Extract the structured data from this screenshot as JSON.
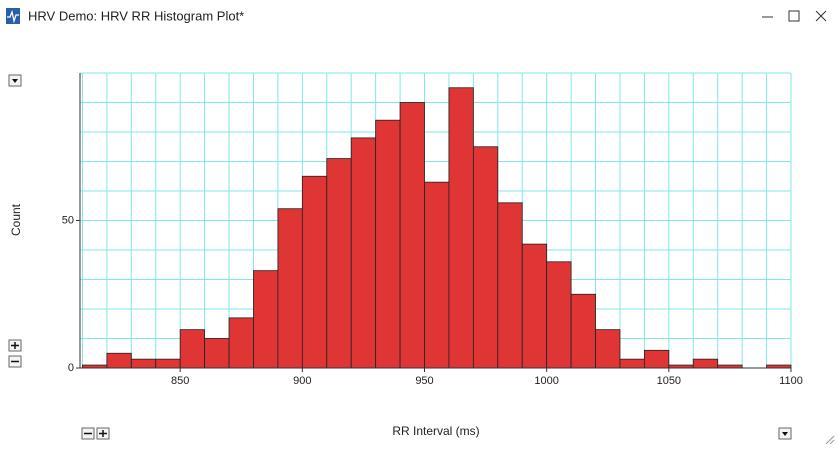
{
  "window": {
    "title": "HRV Demo: HRV RR Histogram Plot*"
  },
  "chart_data": {
    "type": "histogram",
    "xlabel": "RR Interval (ms)",
    "ylabel": "Count",
    "bins": [
      810,
      820,
      830,
      840,
      850,
      860,
      870,
      880,
      890,
      900,
      910,
      920,
      930,
      940,
      950,
      960,
      970,
      980,
      990,
      1000,
      1010,
      1020,
      1030,
      1040,
      1050,
      1060,
      1070,
      1080,
      1090,
      1100
    ],
    "values": [
      1,
      5,
      3,
      3,
      13,
      10,
      17,
      33,
      54,
      65,
      71,
      78,
      84,
      90,
      63,
      95,
      75,
      56,
      42,
      36,
      25,
      13,
      3,
      6,
      1,
      3,
      1,
      0,
      1
    ],
    "color": "#e03535",
    "xlim": [
      809,
      1100
    ],
    "ylim": [
      0,
      100
    ],
    "xticks": [
      850,
      900,
      950,
      1000,
      1050,
      1100
    ],
    "yticks": [
      0,
      50
    ],
    "ygrid": [
      0,
      10,
      20,
      30,
      40,
      50,
      60,
      70,
      80,
      90,
      100
    ],
    "grid": true,
    "grid_color": "#80e8e8"
  }
}
